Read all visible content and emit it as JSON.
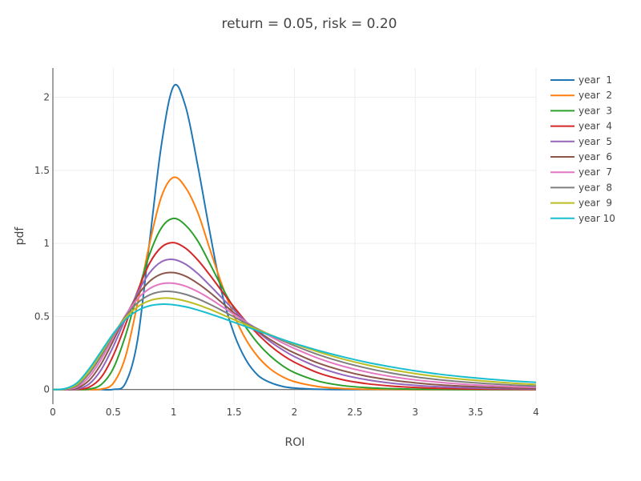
{
  "chart_data": {
    "type": "line",
    "title": "return = 0.05, risk = 0.20",
    "xlabel": "ROI",
    "ylabel": "pdf",
    "xlim": [
      0,
      4
    ],
    "ylim": [
      -0.1,
      2.2
    ],
    "xticks": [
      0,
      0.5,
      1,
      1.5,
      2,
      2.5,
      3,
      3.5,
      4
    ],
    "xtick_labels": [
      "0",
      "0.5",
      "1",
      "1.5",
      "2",
      "2.5",
      "3",
      "3.5",
      "4"
    ],
    "yticks": [
      0,
      0.5,
      1,
      1.5,
      2
    ],
    "ytick_labels": [
      "0",
      "0.5",
      "1",
      "1.5",
      "2"
    ],
    "grid": true,
    "legend_position": "top-right",
    "x": [
      0.0,
      0.1,
      0.2,
      0.3,
      0.4,
      0.5,
      0.6,
      0.7,
      0.8,
      0.9,
      1.0,
      1.1,
      1.2,
      1.3,
      1.4,
      1.5,
      1.6,
      1.7,
      1.8,
      1.9,
      2.0,
      2.2,
      2.4,
      2.6,
      2.8,
      3.0,
      3.2,
      3.4,
      3.6,
      3.8,
      4.0
    ],
    "series": [
      {
        "name": "year  1",
        "color": "#1f77b4",
        "values": [
          0,
          0,
          0,
          0,
          0,
          0.001,
          0.042,
          0.334,
          1.01,
          1.682,
          2.076,
          1.933,
          1.53,
          1.074,
          0.659,
          0.381,
          0.201,
          0.096,
          0.048,
          0.022,
          0.01,
          0.002,
          0,
          0,
          0,
          0,
          0,
          0,
          0,
          0,
          0
        ]
      },
      {
        "name": "year  2",
        "color": "#ff7f0e",
        "values": [
          0,
          0,
          0,
          0,
          0.003,
          0.043,
          0.222,
          0.587,
          0.996,
          1.323,
          1.452,
          1.38,
          1.21,
          0.96,
          0.716,
          0.506,
          0.34,
          0.222,
          0.141,
          0.088,
          0.054,
          0.02,
          0.007,
          0.002,
          0.001,
          0,
          0,
          0,
          0,
          0,
          0
        ]
      },
      {
        "name": "year  3",
        "color": "#2ca02c",
        "values": [
          0,
          0,
          0,
          0.003,
          0.034,
          0.144,
          0.366,
          0.653,
          0.924,
          1.108,
          1.171,
          1.123,
          1.016,
          0.861,
          0.7,
          0.555,
          0.424,
          0.314,
          0.229,
          0.164,
          0.116,
          0.057,
          0.027,
          0.013,
          0.006,
          0.003,
          0.001,
          0,
          0,
          0,
          0
        ]
      },
      {
        "name": "year  4",
        "color": "#d62728",
        "values": [
          0,
          0,
          0.001,
          0.016,
          0.084,
          0.233,
          0.442,
          0.67,
          0.863,
          0.975,
          1.005,
          0.966,
          0.886,
          0.783,
          0.672,
          0.564,
          0.464,
          0.376,
          0.3,
          0.237,
          0.187,
          0.113,
          0.067,
          0.04,
          0.024,
          0.014,
          0.008,
          0.005,
          0.003,
          0.002,
          0.001
        ]
      },
      {
        "name": "year  5",
        "color": "#9467bd",
        "values": [
          0,
          0,
          0.004,
          0.038,
          0.136,
          0.295,
          0.481,
          0.66,
          0.798,
          0.875,
          0.89,
          0.857,
          0.793,
          0.712,
          0.627,
          0.543,
          0.464,
          0.392,
          0.328,
          0.273,
          0.225,
          0.152,
          0.101,
          0.067,
          0.044,
          0.029,
          0.019,
          0.013,
          0.008,
          0.006,
          0.004
        ]
      },
      {
        "name": "year  6",
        "color": "#8c564b",
        "values": [
          0,
          0,
          0.01,
          0.063,
          0.176,
          0.334,
          0.5,
          0.642,
          0.74,
          0.791,
          0.8,
          0.775,
          0.726,
          0.664,
          0.594,
          0.524,
          0.459,
          0.397,
          0.342,
          0.293,
          0.25,
          0.18,
          0.129,
          0.091,
          0.065,
          0.046,
          0.032,
          0.023,
          0.016,
          0.012,
          0.008
        ]
      },
      {
        "name": "year  7",
        "color": "#e377c2",
        "values": [
          0,
          0.001,
          0.018,
          0.087,
          0.207,
          0.358,
          0.507,
          0.62,
          0.69,
          0.724,
          0.727,
          0.707,
          0.67,
          0.622,
          0.568,
          0.514,
          0.462,
          0.411,
          0.364,
          0.32,
          0.281,
          0.213,
          0.16,
          0.12,
          0.089,
          0.066,
          0.049,
          0.036,
          0.027,
          0.02,
          0.015
        ]
      },
      {
        "name": "year  8",
        "color": "#7f7f7f",
        "values": [
          0,
          0.002,
          0.027,
          0.108,
          0.23,
          0.372,
          0.5,
          0.592,
          0.647,
          0.67,
          0.669,
          0.651,
          0.621,
          0.583,
          0.541,
          0.497,
          0.454,
          0.413,
          0.373,
          0.335,
          0.3,
          0.238,
          0.187,
          0.146,
          0.113,
          0.087,
          0.067,
          0.052,
          0.04,
          0.031,
          0.024
        ]
      },
      {
        "name": "year  9",
        "color": "#bcbd22",
        "values": [
          0,
          0.004,
          0.036,
          0.126,
          0.248,
          0.38,
          0.49,
          0.565,
          0.608,
          0.625,
          0.622,
          0.605,
          0.58,
          0.549,
          0.514,
          0.478,
          0.443,
          0.408,
          0.375,
          0.342,
          0.312,
          0.257,
          0.209,
          0.169,
          0.136,
          0.109,
          0.087,
          0.07,
          0.056,
          0.044,
          0.035
        ]
      },
      {
        "name": "year 10",
        "color": "#17becf",
        "values": [
          0,
          0.006,
          0.046,
          0.142,
          0.262,
          0.383,
          0.478,
          0.54,
          0.573,
          0.584,
          0.58,
          0.566,
          0.544,
          0.518,
          0.49,
          0.46,
          0.43,
          0.401,
          0.372,
          0.343,
          0.316,
          0.267,
          0.224,
          0.186,
          0.155,
          0.128,
          0.105,
          0.087,
          0.072,
          0.059,
          0.049
        ]
      }
    ]
  }
}
